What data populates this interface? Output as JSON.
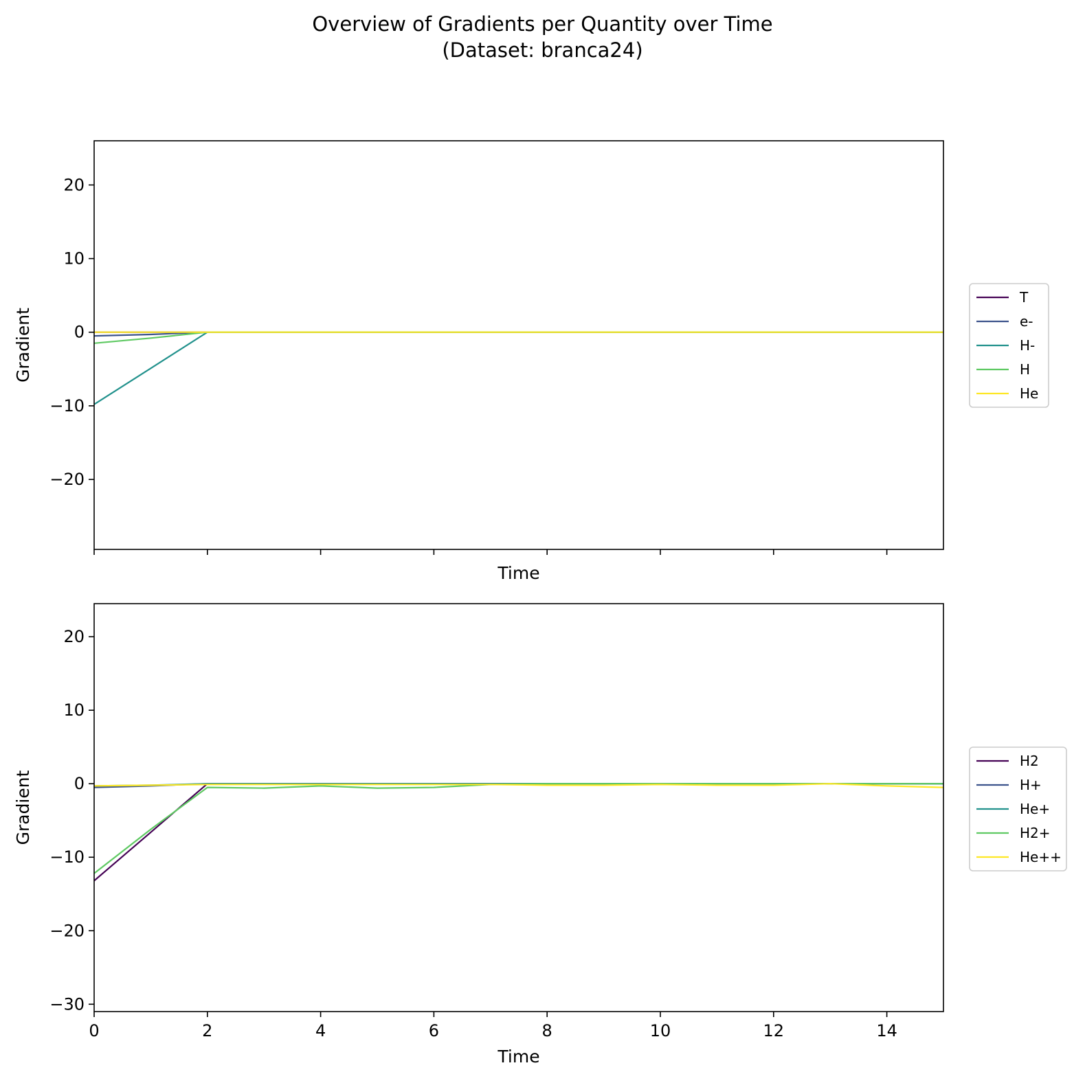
{
  "figure": {
    "title_line1": "Overview of Gradients per Quantity over Time",
    "title_line2": "(Dataset: branca24)"
  },
  "chart_data": [
    {
      "type": "line",
      "xlabel": "Time",
      "ylabel": "Gradient",
      "xlim": [
        0,
        15
      ],
      "ylim": [
        -29.5,
        26
      ],
      "xticks": [
        0,
        2,
        4,
        6,
        8,
        10,
        12,
        14
      ],
      "show_xtick_labels": false,
      "yticks": [
        -20,
        -10,
        0,
        10,
        20
      ],
      "ytick_labels": [
        "−20",
        "−10",
        "0",
        "10",
        "20"
      ],
      "grid": false,
      "legend_position": "right",
      "x": [
        0,
        1,
        2,
        3,
        4,
        5,
        6,
        7,
        8,
        9,
        10,
        11,
        12,
        13,
        14,
        15
      ],
      "series": [
        {
          "name": "T",
          "color": "#440154",
          "values": [
            0,
            0,
            0,
            0,
            0,
            0,
            0,
            0,
            0,
            0,
            0,
            0,
            0,
            0,
            0,
            0
          ]
        },
        {
          "name": "e-",
          "color": "#3b528b",
          "values": [
            -0.5,
            -0.3,
            0,
            0,
            0,
            0,
            0,
            0,
            0,
            0,
            0,
            0,
            0,
            0,
            0,
            0
          ]
        },
        {
          "name": "H-",
          "color": "#21918c",
          "values": [
            -9.8,
            -4.9,
            0,
            0,
            0,
            0,
            0,
            0,
            0,
            0,
            0,
            0,
            0,
            0,
            0,
            0
          ]
        },
        {
          "name": "H",
          "color": "#5ec962",
          "values": [
            -1.5,
            -0.8,
            0,
            0,
            0,
            0,
            0,
            0,
            0,
            0,
            0,
            0,
            0,
            0,
            0,
            0
          ]
        },
        {
          "name": "He",
          "color": "#fde725",
          "values": [
            0,
            0,
            0,
            0,
            0,
            0,
            0,
            0,
            0,
            0,
            0,
            0,
            0,
            0,
            0,
            0
          ]
        }
      ]
    },
    {
      "type": "line",
      "xlabel": "Time",
      "ylabel": "Gradient",
      "xlim": [
        0,
        15
      ],
      "ylim": [
        -31,
        24.5
      ],
      "xticks": [
        0,
        2,
        4,
        6,
        8,
        10,
        12,
        14
      ],
      "xtick_labels": [
        "0",
        "2",
        "4",
        "6",
        "8",
        "10",
        "12",
        "14"
      ],
      "show_xtick_labels": true,
      "yticks": [
        -30,
        -20,
        -10,
        0,
        10,
        20
      ],
      "ytick_labels": [
        "−30",
        "−20",
        "−10",
        "0",
        "10",
        "20"
      ],
      "grid": false,
      "legend_position": "right",
      "x": [
        0,
        1,
        2,
        3,
        4,
        5,
        6,
        7,
        8,
        9,
        10,
        11,
        12,
        13,
        14,
        15
      ],
      "series": [
        {
          "name": "H2",
          "color": "#440154",
          "values": [
            -13.2,
            -6.6,
            0,
            0,
            0,
            0,
            0,
            0,
            0,
            0,
            0,
            0,
            0,
            0,
            0,
            0
          ]
        },
        {
          "name": "H+",
          "color": "#3b528b",
          "values": [
            -0.5,
            -0.3,
            0,
            0,
            0,
            0,
            0,
            0,
            0,
            0,
            0,
            0,
            0,
            0,
            0,
            0
          ]
        },
        {
          "name": "He+",
          "color": "#21918c",
          "values": [
            -0.3,
            -0.2,
            0,
            0,
            0,
            0,
            0,
            0,
            0,
            0,
            0,
            0,
            0,
            0,
            0,
            0
          ]
        },
        {
          "name": "H2+",
          "color": "#5ec962",
          "values": [
            -12.2,
            -6.2,
            -0.5,
            -0.6,
            -0.3,
            -0.6,
            -0.5,
            -0.1,
            0,
            0,
            0,
            0,
            0,
            0,
            0,
            0
          ]
        },
        {
          "name": "He++",
          "color": "#fde725",
          "values": [
            -0.3,
            -0.2,
            -0.1,
            -0.1,
            -0.1,
            -0.1,
            -0.1,
            -0.1,
            -0.2,
            -0.2,
            -0.1,
            -0.2,
            -0.2,
            0,
            -0.3,
            -0.5
          ]
        }
      ]
    }
  ]
}
